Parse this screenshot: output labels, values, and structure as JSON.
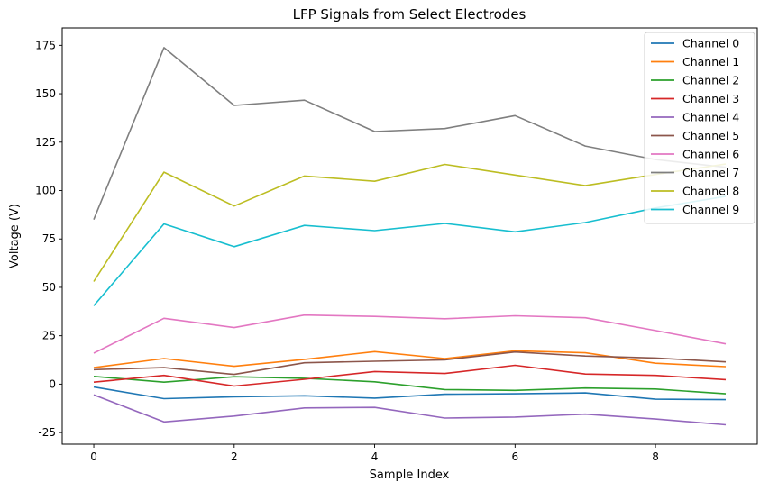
{
  "chart_data": {
    "type": "line",
    "title": "LFP Signals from Select Electrodes",
    "xlabel": "Sample Index",
    "ylabel": "Voltage (V)",
    "x": [
      0,
      1,
      2,
      3,
      4,
      5,
      6,
      7,
      8,
      9
    ],
    "xlim": [
      -0.45,
      9.45
    ],
    "ylim": [
      -31,
      184
    ],
    "xticks": [
      0,
      2,
      4,
      6,
      8
    ],
    "yticks": [
      -25,
      0,
      25,
      50,
      75,
      100,
      125,
      150,
      175
    ],
    "grid": false,
    "legend_position": "top-right",
    "series": [
      {
        "name": "Channel 0",
        "color": "#1f77b4",
        "values": [
          -1.5,
          -7.5,
          -6.5,
          -6,
          -7.2,
          -5.2,
          -5,
          -4.5,
          -7.8,
          -8
        ]
      },
      {
        "name": "Channel 1",
        "color": "#ff7f0e",
        "values": [
          8.5,
          13.2,
          9.2,
          12.8,
          16.8,
          13.2,
          17.2,
          16.2,
          10.8,
          9
        ]
      },
      {
        "name": "Channel 2",
        "color": "#2ca02c",
        "values": [
          4,
          1,
          3.8,
          3,
          1.2,
          -2.8,
          -3.2,
          -2,
          -2.5,
          -5
        ]
      },
      {
        "name": "Channel 3",
        "color": "#d62728",
        "values": [
          1,
          4.5,
          -1,
          2.5,
          6.5,
          5.5,
          9.7,
          5.2,
          4.5,
          2.3
        ]
      },
      {
        "name": "Channel 4",
        "color": "#9467bd",
        "values": [
          -5.5,
          -19.5,
          -16.5,
          -12.3,
          -12,
          -17.5,
          -17,
          -15.5,
          -18,
          -21
        ]
      },
      {
        "name": "Channel 5",
        "color": "#8c564b",
        "values": [
          7.5,
          8.5,
          5,
          11,
          11.8,
          12.5,
          16.6,
          14.5,
          13.5,
          11.5
        ]
      },
      {
        "name": "Channel 6",
        "color": "#e377c2",
        "values": [
          16,
          34,
          29.2,
          35.7,
          35,
          33.8,
          35.3,
          34.3,
          27.7,
          20.8
        ]
      },
      {
        "name": "Channel 7",
        "color": "#7f7f7f",
        "values": [
          85,
          173.8,
          144,
          146.7,
          130.5,
          132,
          138.7,
          123,
          116,
          112
        ]
      },
      {
        "name": "Channel 8",
        "color": "#bcbd22",
        "values": [
          53,
          109.5,
          92,
          107.5,
          104.8,
          113.5,
          108,
          102.5,
          108.3,
          113.7
        ]
      },
      {
        "name": "Channel 9",
        "color": "#17becf",
        "values": [
          40.5,
          82.8,
          71,
          82,
          79.3,
          83,
          78.7,
          83.5,
          91,
          97
        ]
      }
    ]
  }
}
